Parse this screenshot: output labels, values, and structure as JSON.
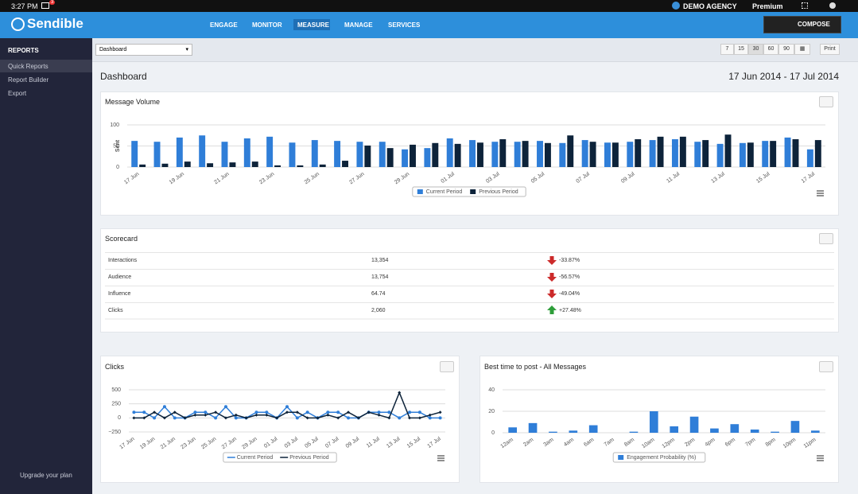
{
  "status_bar": {
    "time": "3:27 PM",
    "badge": "3",
    "account": "DEMO AGENCY",
    "plan": "Premium"
  },
  "nav": {
    "logo": "Sendible",
    "items": [
      "ENGAGE",
      "MONITOR",
      "MEASURE",
      "MANAGE",
      "SERVICES"
    ],
    "compose": "COMPOSE"
  },
  "sidebar": {
    "heading": "REPORTS",
    "items": [
      "Quick Reports",
      "Report Builder",
      "Export"
    ],
    "upgrade": "Upgrade your plan"
  },
  "toolbar": {
    "select": "Dashboard",
    "ranges": [
      "7",
      "15",
      "30",
      "60",
      "90"
    ],
    "print": "Print"
  },
  "header": {
    "title": "Dashboard",
    "date_range": "17 Jun 2014 - 17 Jul 2014"
  },
  "scorecard": {
    "title": "Scorecard",
    "rows": [
      [
        "Interactions",
        "13,354",
        "-33.87%"
      ],
      [
        "Audience",
        "13,754",
        "-56.57%"
      ],
      [
        "Influence",
        "64.74",
        "-49.04%"
      ],
      [
        "Clicks",
        "2,060",
        "+27.48%"
      ]
    ]
  },
  "chart_data": [
    {
      "type": "bar",
      "title": "Message Volume",
      "y_label": "Sent",
      "categories": [
        "17 Jun",
        null,
        "19 Jun",
        null,
        "21 Jun",
        null,
        "23 Jun",
        null,
        "25 Jun",
        null,
        "27 Jun",
        null,
        "29 Jun",
        null,
        "01 Jul",
        null,
        "03 Jul",
        null,
        "05 Jul",
        null,
        "07 Jul",
        null,
        "09 Jul",
        null,
        "11 Jul",
        null,
        "13 Jul",
        null,
        "15 Jul",
        null,
        "17 Jul"
      ],
      "series": [
        {
          "name": "Current Period",
          "color": "#2f7ed8",
          "values": [
            62,
            60,
            70,
            75,
            60,
            68,
            72,
            58,
            64,
            62,
            60,
            60,
            42,
            45,
            68,
            64,
            60,
            60,
            62,
            57,
            64,
            58,
            60,
            64,
            66,
            60,
            55,
            57,
            62,
            70,
            42
          ]
        },
        {
          "name": "Previous Period",
          "color": "#0d233a",
          "values": [
            6,
            8,
            13,
            9,
            11,
            13,
            4,
            4,
            6,
            15,
            51,
            45,
            53,
            57,
            55,
            58,
            66,
            62,
            57,
            75,
            60,
            58,
            66,
            72,
            72,
            64,
            77,
            58,
            62,
            66,
            64
          ]
        }
      ],
      "ylim": [
        0,
        100
      ],
      "yticks": [
        0,
        50,
        100
      ],
      "grid": true
    },
    {
      "type": "line",
      "title": "Clicks",
      "categories": [
        "17 Jun",
        null,
        "19 Jun",
        null,
        "21 Jun",
        null,
        "23 Jun",
        null,
        "25 Jun",
        null,
        "27 Jun",
        null,
        "29 Jun",
        null,
        "01 Jul",
        null,
        "03 Jul",
        null,
        "05 Jul",
        null,
        "07 Jul",
        null,
        "09 Jul",
        null,
        "11 Jul",
        null,
        "13 Jul",
        null,
        "15 Jul",
        null,
        "17 Jul"
      ],
      "series": [
        {
          "name": "Current Period",
          "color": "#2f7ed8",
          "values": [
            100,
            100,
            0,
            200,
            0,
            0,
            100,
            100,
            0,
            200,
            0,
            0,
            100,
            100,
            0,
            200,
            0,
            100,
            0,
            100,
            100,
            0,
            0,
            100,
            100,
            100,
            0,
            100,
            100,
            0,
            0
          ]
        },
        {
          "name": "Previous Period",
          "color": "#0d233a",
          "values": [
            0,
            0,
            100,
            0,
            100,
            0,
            50,
            50,
            100,
            0,
            50,
            0,
            50,
            50,
            0,
            100,
            100,
            0,
            0,
            50,
            0,
            100,
            0,
            100,
            50,
            0,
            450,
            0,
            0,
            50,
            100
          ]
        }
      ],
      "ylim": [
        -250,
        500
      ],
      "yticks": [
        {
          "value": -250,
          "label": "−250"
        },
        0,
        250,
        500
      ],
      "grid": true
    },
    {
      "type": "bar",
      "title": "Best time to post - All Messages",
      "categories": [
        "12am",
        "2am",
        "3am",
        "4am",
        "6am",
        "7am",
        "8am",
        "10am",
        "12pm",
        "2pm",
        "4pm",
        "6pm",
        "7pm",
        "8pm",
        "10pm",
        "11pm"
      ],
      "series": [
        {
          "name": "Engagement Probability (%)",
          "color": "#2f7ed8",
          "values": [
            5,
            9,
            1,
            2,
            7,
            0,
            1,
            20,
            6,
            15,
            4,
            8,
            3,
            1,
            11,
            2
          ]
        }
      ],
      "ylim": [
        0,
        40
      ],
      "yticks": [
        0,
        20,
        40
      ],
      "grid": true
    }
  ]
}
